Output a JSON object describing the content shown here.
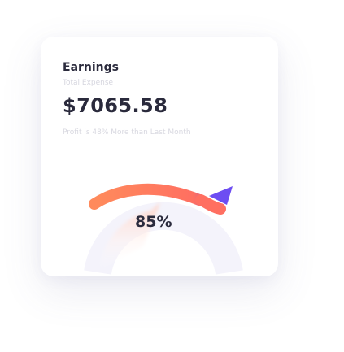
{
  "earnings_card": {
    "title": "Earnings",
    "subtitle": "Total Expense",
    "amount": "$7065.58",
    "note": "Profit is 48% More than Last Month"
  },
  "gauge": {
    "value_label": "85%",
    "progress_fraction": 0.85,
    "colors": {
      "track": "#f3f2fb",
      "gradient_start": "#ff8a5c",
      "gradient_end": "#6d4df2"
    }
  }
}
